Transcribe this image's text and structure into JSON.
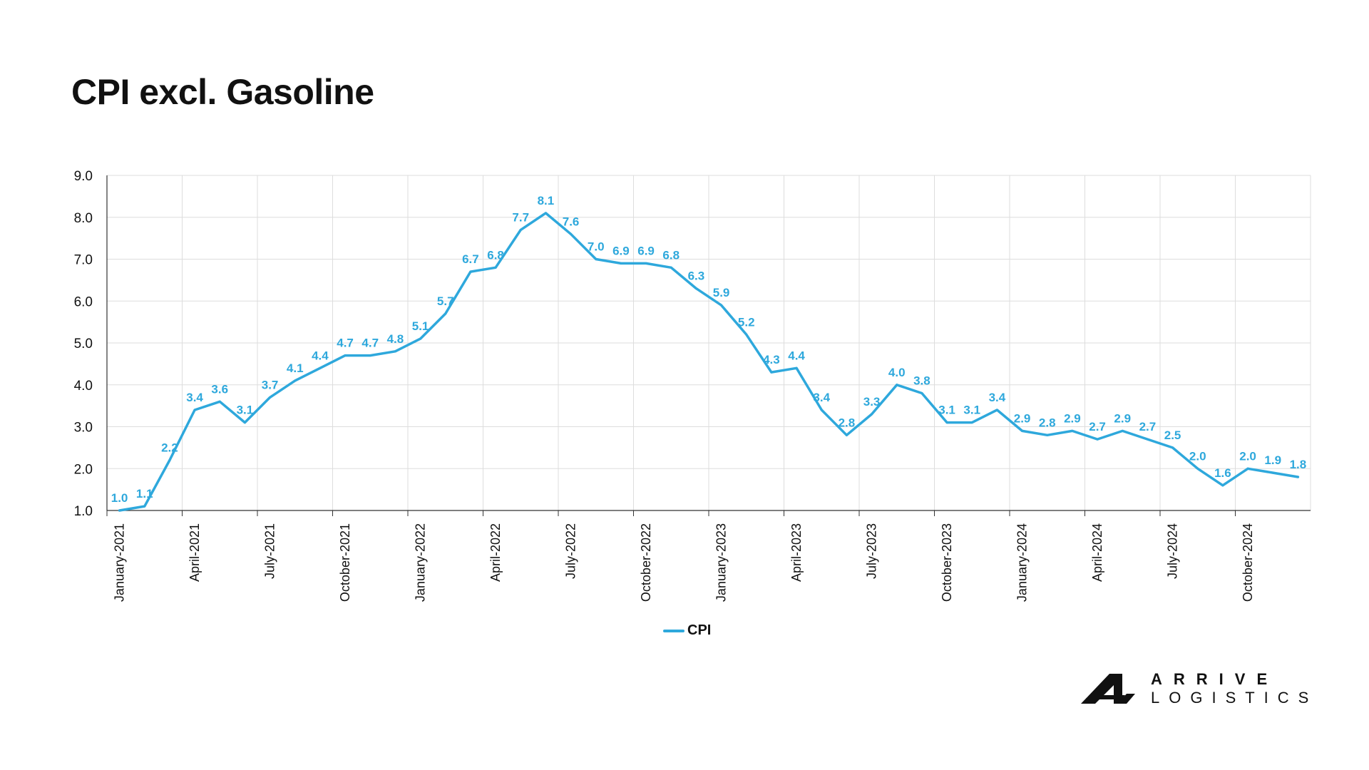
{
  "brand": {
    "line1": "ARRIVE",
    "line2": "LOGISTICS",
    "logo_icon": "arrive-a-mark-icon"
  },
  "chart_data": {
    "type": "line",
    "title": "CPI excl. Gasoline",
    "xlabel": "",
    "ylabel": "",
    "ylim": [
      1.0,
      9.0
    ],
    "yticks": [
      "1.0",
      "2.0",
      "3.0",
      "4.0",
      "5.0",
      "6.0",
      "7.0",
      "8.0",
      "9.0"
    ],
    "grid": true,
    "legend_position": "bottom",
    "x": [
      "January-2021",
      "February-2021",
      "March-2021",
      "April-2021",
      "May-2021",
      "June-2021",
      "July-2021",
      "August-2021",
      "September-2021",
      "October-2021",
      "November-2021",
      "December-2021",
      "January-2022",
      "February-2022",
      "March-2022",
      "April-2022",
      "May-2022",
      "June-2022",
      "July-2022",
      "August-2022",
      "September-2022",
      "October-2022",
      "November-2022",
      "December-2022",
      "January-2023",
      "February-2023",
      "March-2023",
      "April-2023",
      "May-2023",
      "June-2023",
      "July-2023",
      "August-2023",
      "September-2023",
      "October-2023",
      "November-2023",
      "December-2023",
      "January-2024",
      "February-2024",
      "March-2024",
      "April-2024",
      "May-2024",
      "June-2024",
      "July-2024",
      "August-2024",
      "September-2024",
      "October-2024",
      "November-2024",
      "December-2024"
    ],
    "xtick_labels": [
      "January-2021",
      "April-2021",
      "July-2021",
      "October-2021",
      "January-2022",
      "April-2022",
      "July-2022",
      "October-2022",
      "January-2023",
      "April-2023",
      "July-2023",
      "October-2023",
      "January-2024",
      "April-2024",
      "July-2024",
      "October-2024"
    ],
    "series": [
      {
        "name": "CPI",
        "color": "#2ea8dc",
        "values": [
          1.0,
          1.1,
          2.2,
          3.4,
          3.6,
          3.1,
          3.7,
          4.1,
          4.4,
          4.7,
          4.7,
          4.8,
          5.1,
          5.7,
          6.7,
          6.8,
          7.7,
          8.1,
          7.6,
          7.0,
          6.9,
          6.9,
          6.8,
          6.3,
          5.9,
          5.2,
          4.3,
          4.4,
          3.4,
          2.8,
          3.3,
          4.0,
          3.8,
          3.1,
          3.1,
          3.4,
          2.9,
          2.8,
          2.9,
          2.7,
          2.9,
          2.7,
          2.5,
          2.0,
          1.6,
          2.0,
          1.9,
          1.8
        ]
      }
    ]
  }
}
